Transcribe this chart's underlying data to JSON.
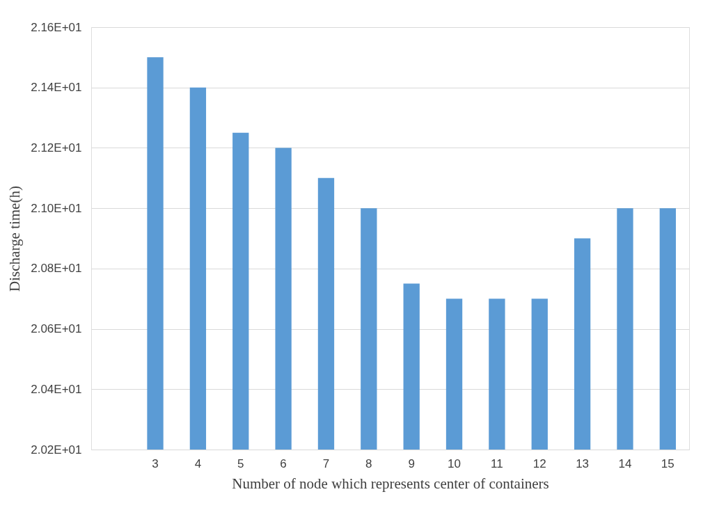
{
  "chart_data": {
    "type": "bar",
    "xlabel": "Number of node which represents center of containers",
    "ylabel": "Discharge time(h)",
    "categories": [
      null,
      "3",
      "4",
      "5",
      "6",
      "7",
      "8",
      "9",
      "10",
      "11",
      "12",
      "13",
      "14",
      "15"
    ],
    "values": [
      null,
      21.5,
      21.4,
      21.25,
      21.2,
      21.1,
      21.0,
      20.75,
      20.7,
      20.7,
      20.7,
      20.9,
      21.0,
      21.0
    ],
    "color": "#5b9bd5",
    "ylim": [
      20.2,
      21.6
    ],
    "yticks": [
      {
        "value": 20.2,
        "label": "2.02E+01"
      },
      {
        "value": 20.4,
        "label": "2.04E+01"
      },
      {
        "value": 20.6,
        "label": "2.06E+01"
      },
      {
        "value": 20.8,
        "label": "2.08E+01"
      },
      {
        "value": 21.0,
        "label": "2.10E+01"
      },
      {
        "value": 21.2,
        "label": "2.12E+01"
      },
      {
        "value": 21.4,
        "label": "2.14E+01"
      },
      {
        "value": 21.6,
        "label": "2.16E+01"
      }
    ],
    "grid": "y"
  }
}
